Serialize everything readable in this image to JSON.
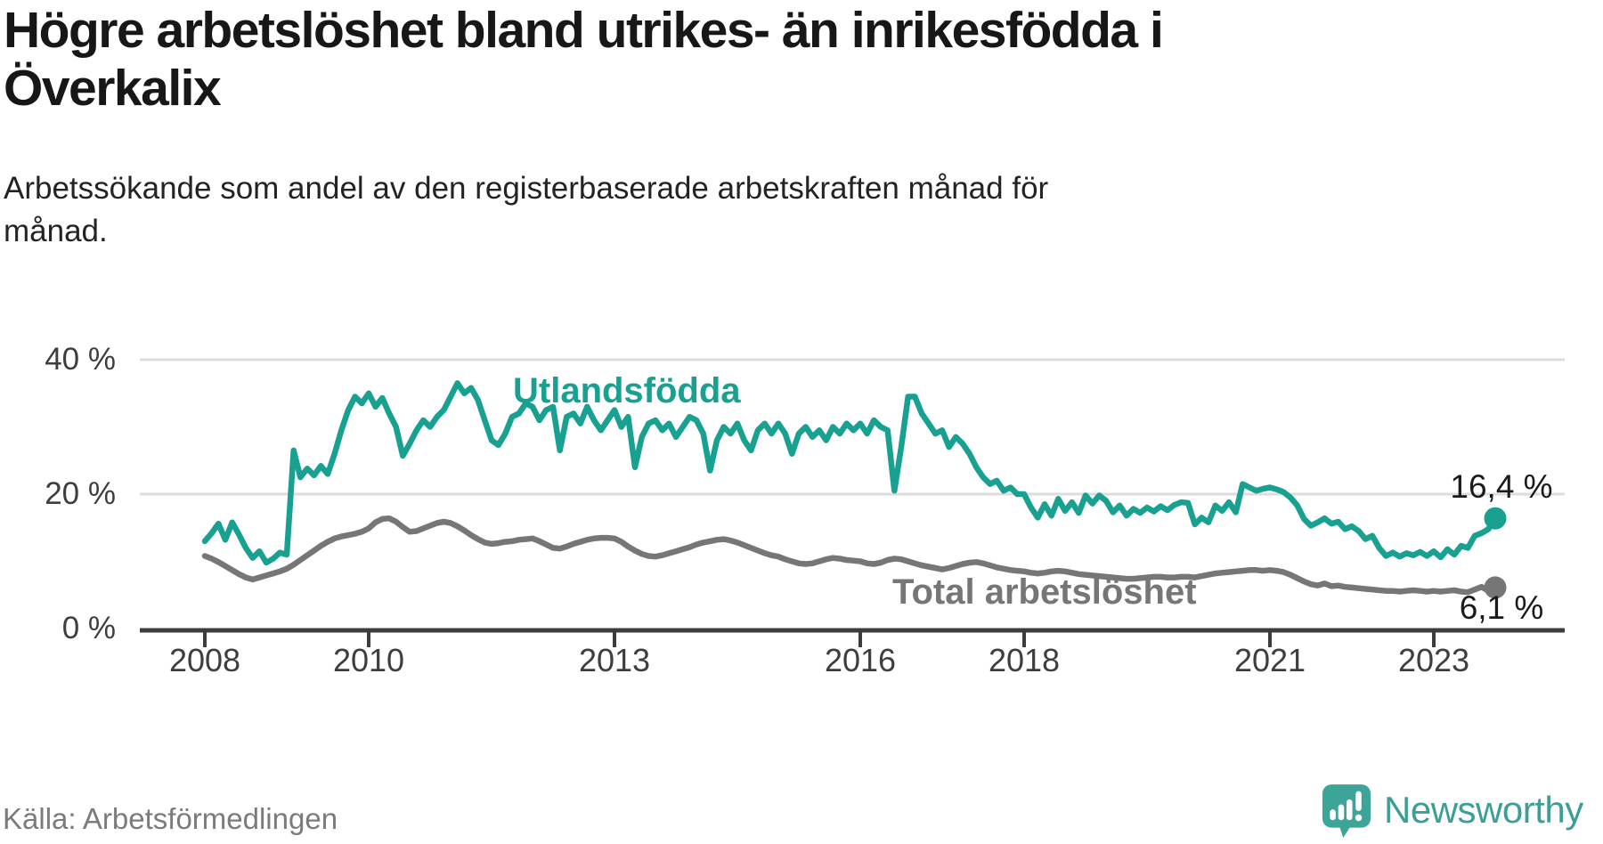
{
  "title": {
    "line1": "Högre arbetslöshet bland utrikes- än inrikesfödda i",
    "line2": "Överkalix"
  },
  "subtitle": {
    "line1": "Arbetssökande som andel av den registerbaserade arbetskraften månad för",
    "line2": "månad."
  },
  "source_label": "Källa: Arbetsförmedlingen",
  "brand": {
    "name": "Newsworthy",
    "accent_color": "#3c9f97"
  },
  "chart_data": {
    "type": "line",
    "title": "Högre arbetslöshet bland utrikes- än inrikesfödda i Överkalix",
    "xlabel": "",
    "ylabel": "Arbetssökande som andel av den registerbaserade arbetskraften",
    "unit": "%",
    "x_start": "2008-01",
    "x_end": "2023-10",
    "x_resolution": "monthly",
    "ylim": [
      0,
      44
    ],
    "grid": "horizontal",
    "axis_color": "#3d3d3d",
    "grid_color": "#dcdcdc",
    "yticks": [
      {
        "label": "40 %",
        "value": 40
      },
      {
        "label": "20 %",
        "value": 20
      },
      {
        "label": "0 %",
        "value": 0
      }
    ],
    "xticks": [
      2008,
      2010,
      2013,
      2016,
      2018,
      2021,
      2023
    ],
    "series": [
      {
        "name": "Utlandsfödda",
        "color": "#18a191",
        "end_label": "16,4 %",
        "end_value": 16.4,
        "values": [
          13.0,
          14.2,
          15.6,
          13.2,
          15.8,
          14.0,
          12.0,
          10.5,
          11.5,
          9.8,
          10.4,
          11.3,
          11.0,
          26.5,
          22.5,
          23.8,
          22.8,
          24.2,
          23.0,
          26.0,
          29.5,
          32.5,
          34.5,
          33.5,
          35.0,
          33.0,
          34.3,
          32.0,
          30.0,
          25.7,
          27.5,
          29.5,
          31.0,
          30.0,
          31.5,
          32.5,
          34.5,
          36.5,
          35.0,
          35.8,
          34.0,
          31.0,
          28.0,
          27.3,
          29.0,
          31.5,
          32.0,
          33.5,
          33.0,
          31.0,
          32.5,
          33.0,
          26.5,
          31.5,
          32.0,
          30.5,
          33.0,
          31.0,
          29.5,
          31.0,
          32.5,
          30.0,
          31.5,
          24.0,
          28.5,
          30.5,
          31.0,
          29.5,
          30.5,
          28.5,
          30.0,
          31.5,
          31.0,
          29.0,
          23.5,
          28.0,
          30.0,
          29.0,
          30.5,
          28.0,
          26.5,
          29.5,
          30.5,
          29.0,
          30.5,
          29.0,
          26.0,
          29.0,
          30.0,
          28.5,
          29.5,
          28.0,
          30.0,
          29.0,
          30.5,
          29.5,
          30.5,
          29.0,
          31.0,
          30.0,
          29.5,
          20.5,
          27.0,
          34.5,
          34.5,
          32.0,
          30.5,
          29.0,
          29.5,
          27.0,
          28.5,
          27.5,
          26.0,
          24.0,
          22.5,
          21.5,
          22.0,
          20.5,
          21.0,
          20.0,
          20.0,
          18.0,
          16.5,
          18.5,
          16.8,
          19.3,
          17.5,
          18.8,
          17.2,
          19.8,
          18.6,
          19.8,
          19.0,
          17.3,
          18.3,
          16.8,
          17.8,
          17.2,
          18.0,
          17.4,
          18.2,
          17.6,
          18.4,
          18.8,
          18.7,
          15.5,
          16.5,
          15.8,
          18.3,
          17.5,
          18.8,
          17.3,
          21.5,
          21.0,
          20.5,
          20.8,
          21.0,
          20.7,
          20.3,
          19.5,
          18.3,
          16.3,
          15.3,
          15.8,
          16.4,
          15.6,
          15.9,
          14.8,
          15.2,
          14.5,
          13.3,
          13.8,
          12.0,
          10.8,
          11.3,
          10.7,
          11.2,
          10.9,
          11.4,
          10.8,
          11.5,
          10.6,
          11.8,
          11.0,
          12.3,
          12.0,
          13.8,
          14.2,
          14.8,
          16.4
        ]
      },
      {
        "name": "Total arbetslöshet",
        "color": "#767676",
        "end_label": "6,1 %",
        "end_value": 6.1,
        "values": [
          10.8,
          10.4,
          9.9,
          9.3,
          8.7,
          8.1,
          7.6,
          7.3,
          7.6,
          7.9,
          8.2,
          8.5,
          8.9,
          9.5,
          10.2,
          10.9,
          11.6,
          12.3,
          12.9,
          13.4,
          13.7,
          13.9,
          14.1,
          14.4,
          14.9,
          15.8,
          16.3,
          16.4,
          15.9,
          15.1,
          14.4,
          14.5,
          14.9,
          15.3,
          15.7,
          15.9,
          15.7,
          15.2,
          14.6,
          13.9,
          13.3,
          12.8,
          12.6,
          12.7,
          12.9,
          13.0,
          13.2,
          13.3,
          13.4,
          13.0,
          12.5,
          12.0,
          11.9,
          12.2,
          12.6,
          12.9,
          13.2,
          13.4,
          13.5,
          13.5,
          13.4,
          12.9,
          12.2,
          11.6,
          11.1,
          10.8,
          10.7,
          10.9,
          11.2,
          11.5,
          11.8,
          12.1,
          12.5,
          12.8,
          13.0,
          13.2,
          13.3,
          13.1,
          12.8,
          12.4,
          12.0,
          11.6,
          11.2,
          10.9,
          10.7,
          10.3,
          10.0,
          9.7,
          9.6,
          9.7,
          10.0,
          10.3,
          10.5,
          10.4,
          10.2,
          10.1,
          10.0,
          9.7,
          9.6,
          9.8,
          10.2,
          10.4,
          10.3,
          10.0,
          9.7,
          9.4,
          9.2,
          9.0,
          8.8,
          9.0,
          9.3,
          9.6,
          9.8,
          9.9,
          9.7,
          9.4,
          9.1,
          8.9,
          8.7,
          8.6,
          8.5,
          8.3,
          8.2,
          8.3,
          8.5,
          8.6,
          8.5,
          8.3,
          8.1,
          8.0,
          7.9,
          7.8,
          7.7,
          7.6,
          7.5,
          7.4,
          7.4,
          7.5,
          7.6,
          7.7,
          7.7,
          7.6,
          7.6,
          7.7,
          7.7,
          7.6,
          7.8,
          8.0,
          8.2,
          8.3,
          8.4,
          8.5,
          8.6,
          8.7,
          8.7,
          8.6,
          8.7,
          8.6,
          8.4,
          8.0,
          7.5,
          7.0,
          6.6,
          6.4,
          6.7,
          6.3,
          6.4,
          6.2,
          6.1,
          6.0,
          5.9,
          5.8,
          5.7,
          5.6,
          5.6,
          5.5,
          5.6,
          5.7,
          5.6,
          5.5,
          5.6,
          5.5,
          5.6,
          5.7,
          5.5,
          5.4,
          5.8,
          6.2,
          5.6,
          6.1
        ]
      }
    ]
  }
}
